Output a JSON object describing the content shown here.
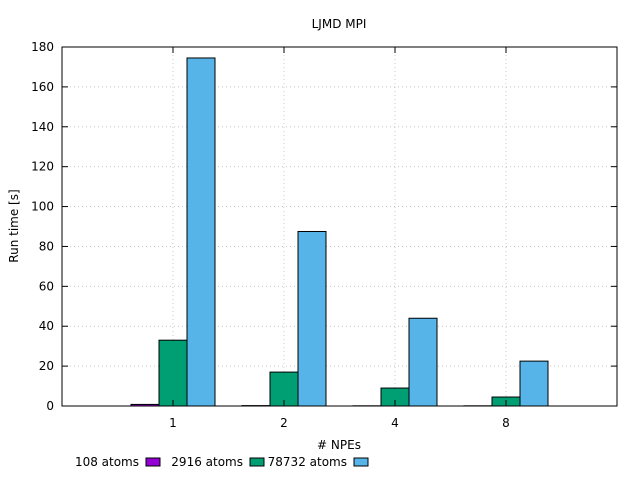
{
  "chart_data": {
    "type": "bar",
    "title": "LJMD MPI",
    "xlabel": "# NPEs",
    "ylabel": "Run time [s]",
    "categories": [
      "1",
      "2",
      "4",
      "8"
    ],
    "ylim": [
      0,
      180
    ],
    "yticks": [
      0,
      20,
      40,
      60,
      80,
      100,
      120,
      140,
      160,
      180
    ],
    "grid": true,
    "legend_position": "bottom-left",
    "series": [
      {
        "name": "108 atoms",
        "color": "#9400d3",
        "values": [
          0.8,
          0.2,
          0.1,
          0.1
        ]
      },
      {
        "name": "2916 atoms",
        "color": "#009e73",
        "values": [
          33.0,
          17.0,
          9.0,
          4.5
        ]
      },
      {
        "name": "78732 atoms",
        "color": "#56b4e9",
        "values": [
          174.5,
          87.5,
          44.0,
          22.5
        ]
      }
    ]
  }
}
